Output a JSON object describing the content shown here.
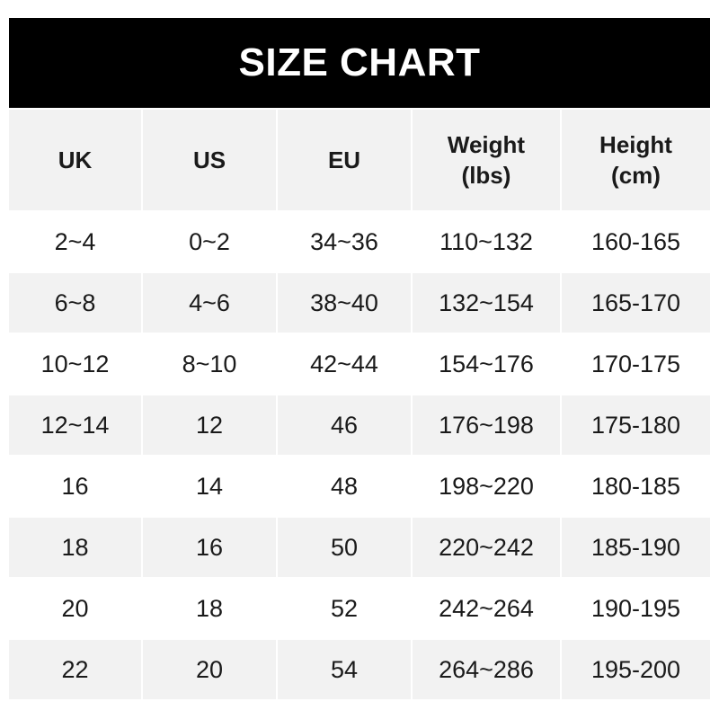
{
  "title": "SIZE CHART",
  "columns": [
    {
      "line1": "UK",
      "line2": ""
    },
    {
      "line1": "US",
      "line2": ""
    },
    {
      "line1": "EU",
      "line2": ""
    },
    {
      "line1": "Weight",
      "line2": "(lbs)"
    },
    {
      "line1": "Height",
      "line2": "(cm)"
    }
  ],
  "rows": [
    [
      "2~4",
      "0~2",
      "34~36",
      "110~132",
      "160-165"
    ],
    [
      "6~8",
      "4~6",
      "38~40",
      "132~154",
      "165-170"
    ],
    [
      "10~12",
      "8~10",
      "42~44",
      "154~176",
      "170-175"
    ],
    [
      "12~14",
      "12",
      "46",
      "176~198",
      "175-180"
    ],
    [
      "16",
      "14",
      "48",
      "198~220",
      "180-185"
    ],
    [
      "18",
      "16",
      "50",
      "220~242",
      "185-190"
    ],
    [
      "20",
      "18",
      "52",
      "242~264",
      "190-195"
    ],
    [
      "22",
      "20",
      "54",
      "264~286",
      "195-200"
    ]
  ],
  "colors": {
    "title_bg": "#000000",
    "stripe": "#f2f2f2",
    "text": "#1a1a1a"
  }
}
